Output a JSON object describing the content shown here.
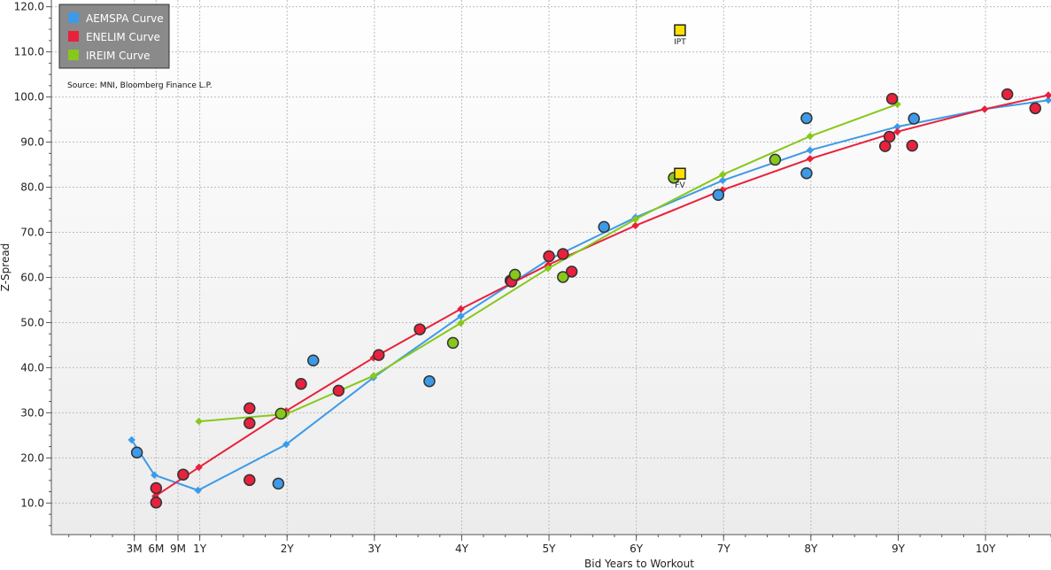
{
  "chart_data": {
    "type": "scatter",
    "xlabel": "Bid Years to Workout",
    "ylabel": "Z-Spread",
    "xlim": [
      -0.7,
      10.75
    ],
    "ylim": [
      3,
      121.5
    ],
    "grid": true,
    "legend_position": "top-left",
    "source": "Source: MNI, Bloomberg Finance L.P.",
    "y_ticks": [
      {
        "value": 10,
        "label": "10.0"
      },
      {
        "value": 20,
        "label": "20.0"
      },
      {
        "value": 30,
        "label": "30.0"
      },
      {
        "value": 40,
        "label": "40.0"
      },
      {
        "value": 50,
        "label": "50.0"
      },
      {
        "value": 60,
        "label": "60.0"
      },
      {
        "value": 70,
        "label": "70.0"
      },
      {
        "value": 80,
        "label": "80.0"
      },
      {
        "value": 90,
        "label": "90.0"
      },
      {
        "value": 100,
        "label": "100.0"
      },
      {
        "value": 110,
        "label": "110.0"
      },
      {
        "value": 120,
        "label": "120.0"
      }
    ],
    "x_ticks": [
      {
        "value": 0.25,
        "label": "3M"
      },
      {
        "value": 0.5,
        "label": "6M"
      },
      {
        "value": 0.75,
        "label": "9M"
      },
      {
        "value": 1,
        "label": "1Y"
      },
      {
        "value": 2,
        "label": "2Y"
      },
      {
        "value": 3,
        "label": "3Y"
      },
      {
        "value": 4,
        "label": "4Y"
      },
      {
        "value": 5,
        "label": "5Y"
      },
      {
        "value": 6,
        "label": "6Y"
      },
      {
        "value": 7,
        "label": "7Y"
      },
      {
        "value": 8,
        "label": "8Y"
      },
      {
        "value": 9,
        "label": "9Y"
      },
      {
        "value": 10,
        "label": "10Y"
      }
    ],
    "series": [
      {
        "name": "AEMSPA Curve",
        "color": "#3d9ae8",
        "curve": [
          [
            0.22,
            24.0
          ],
          [
            0.48,
            16.2
          ],
          [
            0.98,
            12.8
          ],
          [
            1.99,
            23.0
          ],
          [
            2.99,
            37.8
          ],
          [
            3.99,
            51.4
          ],
          [
            4.99,
            63.9
          ],
          [
            5.99,
            73.3
          ],
          [
            6.99,
            81.5
          ],
          [
            7.99,
            88.2
          ],
          [
            8.99,
            93.4
          ],
          [
            9.99,
            97.3
          ],
          [
            10.72,
            99.3
          ]
        ],
        "bonds": [
          [
            0.28,
            21.2
          ],
          [
            1.9,
            14.3
          ],
          [
            2.3,
            41.6
          ],
          [
            3.63,
            37.0
          ],
          [
            4.56,
            59.3
          ],
          [
            5.63,
            71.2
          ],
          [
            6.94,
            78.3
          ],
          [
            7.95,
            83.1
          ],
          [
            7.95,
            95.3
          ],
          [
            9.18,
            95.2
          ]
        ]
      },
      {
        "name": "ENELIM Curve",
        "color": "#e8213c",
        "curve": [
          [
            0.49,
            11.5
          ],
          [
            0.99,
            17.9
          ],
          [
            1.99,
            30.4
          ],
          [
            2.99,
            42.2
          ],
          [
            3.99,
            53.0
          ],
          [
            4.99,
            62.8
          ],
          [
            5.99,
            71.5
          ],
          [
            6.99,
            79.4
          ],
          [
            7.99,
            86.3
          ],
          [
            8.99,
            92.3
          ],
          [
            9.99,
            97.3
          ],
          [
            10.72,
            100.4
          ]
        ],
        "bonds": [
          [
            0.5,
            10.1
          ],
          [
            0.5,
            13.3
          ],
          [
            0.81,
            16.3
          ],
          [
            1.57,
            31.0
          ],
          [
            1.57,
            27.7
          ],
          [
            1.57,
            15.1
          ],
          [
            2.16,
            36.4
          ],
          [
            2.59,
            34.9
          ],
          [
            3.05,
            42.8
          ],
          [
            3.52,
            48.5
          ],
          [
            4.57,
            59.1
          ],
          [
            5.0,
            64.7
          ],
          [
            5.16,
            65.2
          ],
          [
            5.26,
            61.3
          ],
          [
            8.85,
            89.1
          ],
          [
            8.9,
            91.2
          ],
          [
            8.93,
            99.6
          ],
          [
            9.16,
            89.2
          ],
          [
            10.25,
            100.6
          ],
          [
            10.57,
            97.5
          ]
        ]
      },
      {
        "name": "IREIM Curve",
        "color": "#87c81b",
        "curve": [
          [
            0.99,
            28.1
          ],
          [
            1.99,
            29.7
          ],
          [
            2.99,
            38.2
          ],
          [
            3.99,
            49.9
          ],
          [
            4.99,
            62.0
          ],
          [
            5.99,
            72.9
          ],
          [
            6.99,
            82.8
          ],
          [
            7.99,
            91.3
          ],
          [
            8.99,
            98.4
          ]
        ],
        "bonds": [
          [
            1.93,
            29.8
          ],
          [
            3.9,
            45.5
          ],
          [
            4.61,
            60.6
          ],
          [
            5.16,
            60.1
          ],
          [
            6.43,
            82.1
          ],
          [
            7.59,
            86.1
          ]
        ]
      }
    ],
    "markers": [
      {
        "label": "IPT",
        "x": 6.5,
        "y": 114.8,
        "color": "#ffe000"
      },
      {
        "label": "FV",
        "x": 6.5,
        "y": 83.0,
        "color": "#ffe000"
      }
    ]
  }
}
